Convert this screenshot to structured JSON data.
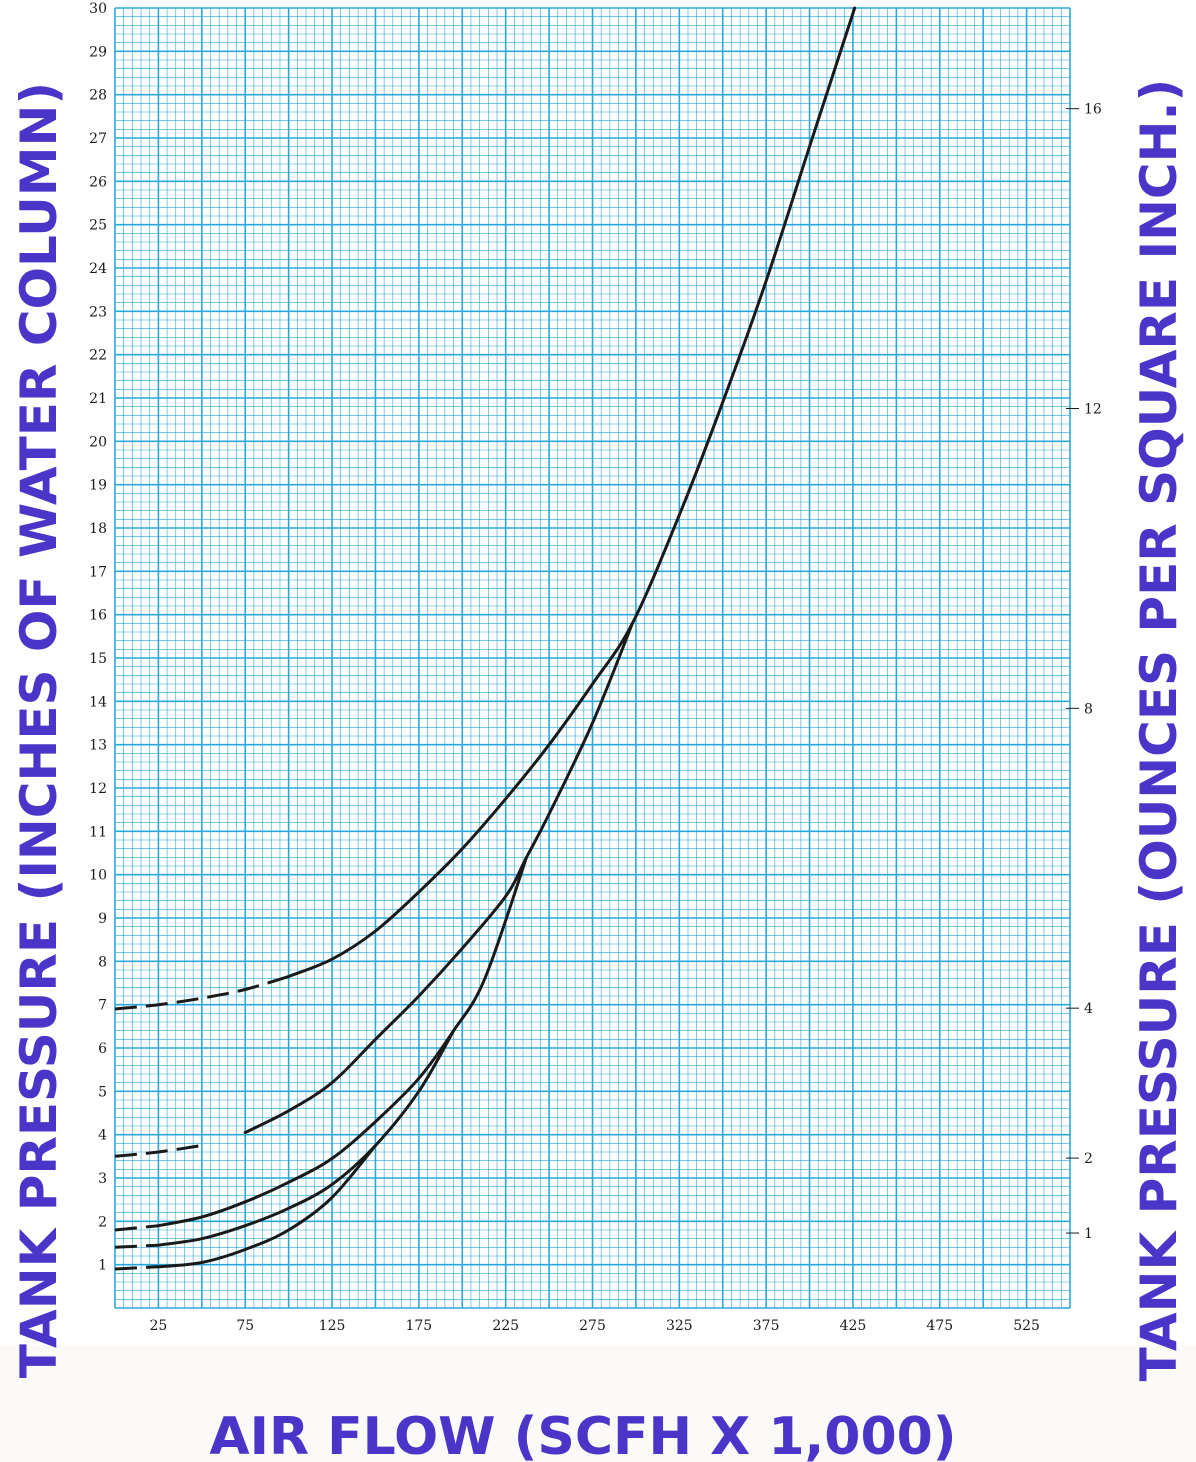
{
  "chart_data": {
    "type": "line",
    "title": "",
    "xlabel": "AIR FLOW (SCFH X 1,000)",
    "ylabel": "TANK PRESSURE (INCHES OF WATER COLUMN)",
    "y2label": "TANK PRESSURE (OUNCES PER SQUARE INCH.)",
    "xlim": [
      0,
      550
    ],
    "ylim": [
      0,
      30
    ],
    "x_ticks": [
      25,
      75,
      125,
      175,
      225,
      275,
      325,
      375,
      425,
      475,
      525
    ],
    "y_ticks": [
      1,
      2,
      3,
      4,
      5,
      6,
      7,
      8,
      9,
      10,
      11,
      12,
      13,
      14,
      15,
      16,
      17,
      18,
      19,
      20,
      21,
      22,
      23,
      24,
      25,
      26,
      27,
      28,
      29,
      30
    ],
    "y2_ticks": [
      1,
      2,
      4,
      8,
      12,
      16
    ],
    "grid": true,
    "colors": {
      "grid": "#29a8de",
      "curve": "#1a1a1a",
      "title": "#4a35c8",
      "background": "#ffffff"
    },
    "series": [
      {
        "dashed_until_x": 100,
        "points": [
          [
            0,
            6.9
          ],
          [
            25,
            7.0
          ],
          [
            50,
            7.15
          ],
          [
            75,
            7.35
          ],
          [
            100,
            7.65
          ],
          [
            125,
            8.05
          ],
          [
            150,
            8.7
          ],
          [
            175,
            9.6
          ],
          [
            200,
            10.6
          ],
          [
            225,
            11.75
          ],
          [
            250,
            13.0
          ],
          [
            275,
            14.4
          ],
          [
            298,
            15.8
          ],
          [
            325,
            18.3
          ],
          [
            350,
            20.9
          ],
          [
            375,
            23.7
          ],
          [
            400,
            26.8
          ],
          [
            426,
            30.0
          ]
        ]
      },
      {
        "dashed_until_x": 60,
        "points": [
          [
            0,
            3.5
          ],
          [
            25,
            3.6
          ],
          [
            50,
            3.75
          ],
          [
            75,
            4.05
          ],
          [
            100,
            4.55
          ],
          [
            125,
            5.2
          ],
          [
            150,
            6.2
          ],
          [
            175,
            7.2
          ],
          [
            200,
            8.3
          ],
          [
            225,
            9.5
          ],
          [
            237,
            10.4
          ],
          [
            250,
            11.4
          ],
          [
            275,
            13.5
          ],
          [
            298,
            15.8
          ]
        ]
      },
      {
        "dashed_until_x": 25,
        "points": [
          [
            0,
            1.8
          ],
          [
            25,
            1.9
          ],
          [
            50,
            2.1
          ],
          [
            75,
            2.45
          ],
          [
            100,
            2.9
          ],
          [
            125,
            3.45
          ],
          [
            150,
            4.3
          ],
          [
            175,
            5.3
          ],
          [
            195,
            6.4
          ],
          [
            213,
            7.6
          ],
          [
            237,
            10.4
          ]
        ]
      },
      {
        "dashed_until_x": 25,
        "points": [
          [
            0,
            1.4
          ],
          [
            25,
            1.45
          ],
          [
            50,
            1.6
          ],
          [
            75,
            1.9
          ],
          [
            100,
            2.3
          ],
          [
            125,
            2.85
          ],
          [
            150,
            3.75
          ],
          [
            175,
            5.0
          ],
          [
            195,
            6.4
          ]
        ]
      },
      {
        "dashed_until_x": 25,
        "points": [
          [
            0,
            0.9
          ],
          [
            25,
            0.95
          ],
          [
            50,
            1.05
          ],
          [
            75,
            1.35
          ],
          [
            100,
            1.8
          ],
          [
            125,
            2.55
          ],
          [
            150,
            3.75
          ]
        ]
      }
    ]
  }
}
